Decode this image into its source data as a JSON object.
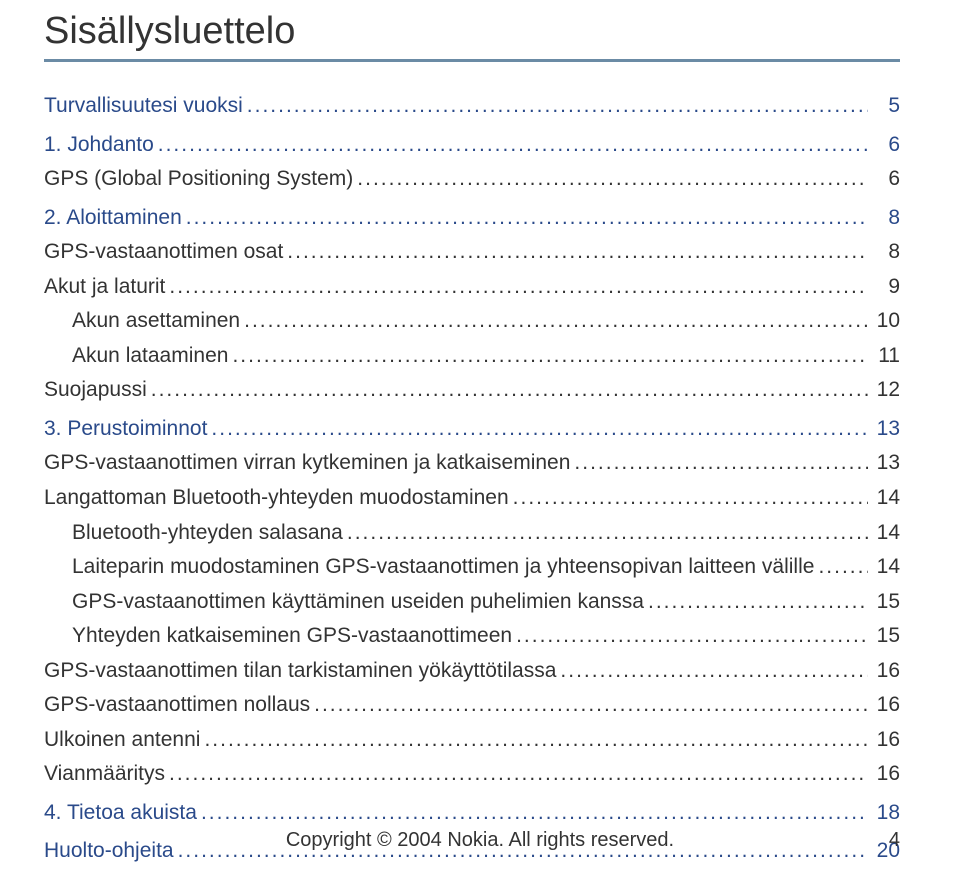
{
  "title": "Sisällysluettelo",
  "toc": [
    {
      "label": "Turvallisuutesi vuoksi",
      "page": "5",
      "section": true,
      "indent": 0
    },
    {
      "label": "1. Johdanto",
      "page": "6",
      "section": true,
      "indent": 0,
      "gap": true
    },
    {
      "label": "GPS (Global Positioning System)",
      "page": "6",
      "section": false,
      "indent": 0
    },
    {
      "label": "2. Aloittaminen",
      "page": "8",
      "section": true,
      "indent": 0,
      "gap": true
    },
    {
      "label": "GPS-vastaanottimen osat",
      "page": "8",
      "section": false,
      "indent": 0
    },
    {
      "label": "Akut ja laturit",
      "page": "9",
      "section": false,
      "indent": 0
    },
    {
      "label": "Akun asettaminen",
      "page": "10",
      "section": false,
      "indent": 1
    },
    {
      "label": "Akun lataaminen",
      "page": "11",
      "section": false,
      "indent": 1
    },
    {
      "label": "Suojapussi",
      "page": "12",
      "section": false,
      "indent": 0
    },
    {
      "label": "3. Perustoiminnot",
      "page": "13",
      "section": true,
      "indent": 0,
      "gap": true
    },
    {
      "label": "GPS-vastaanottimen virran kytkeminen ja katkaiseminen",
      "page": "13",
      "section": false,
      "indent": 0
    },
    {
      "label": "Langattoman Bluetooth-yhteyden muodostaminen",
      "page": "14",
      "section": false,
      "indent": 0
    },
    {
      "label": "Bluetooth-yhteyden salasana",
      "page": "14",
      "section": false,
      "indent": 1
    },
    {
      "label": "Laiteparin muodostaminen GPS-vastaanottimen ja yhteensopivan laitteen välille",
      "page": "14",
      "section": false,
      "indent": 1
    },
    {
      "label": "GPS-vastaanottimen käyttäminen useiden puhelimien kanssa",
      "page": "15",
      "section": false,
      "indent": 1
    },
    {
      "label": "Yhteyden katkaiseminen GPS-vastaanottimeen",
      "page": "15",
      "section": false,
      "indent": 1
    },
    {
      "label": "GPS-vastaanottimen tilan tarkistaminen yökäyttötilassa",
      "page": "16",
      "section": false,
      "indent": 0
    },
    {
      "label": "GPS-vastaanottimen nollaus",
      "page": "16",
      "section": false,
      "indent": 0
    },
    {
      "label": "Ulkoinen antenni",
      "page": "16",
      "section": false,
      "indent": 0
    },
    {
      "label": "Vianmääritys",
      "page": "16",
      "section": false,
      "indent": 0
    },
    {
      "label": "4. Tietoa akuista",
      "page": "18",
      "section": true,
      "indent": 0,
      "gap": true
    },
    {
      "label": "Huolto-ohjeita",
      "page": "20",
      "section": true,
      "indent": 0,
      "gap": true
    }
  ],
  "footer": {
    "copyright": "Copyright © 2004 Nokia. All rights reserved.",
    "pagenum": "4"
  },
  "colors": {
    "section": "#2a4a8a",
    "body": "#333333",
    "rule": "#6b8ba5",
    "background": "#ffffff"
  },
  "typography": {
    "title_fontsize": 38,
    "toc_fontsize": 21,
    "footer_fontsize": 20,
    "font_family": "Arial, Helvetica, sans-serif"
  }
}
